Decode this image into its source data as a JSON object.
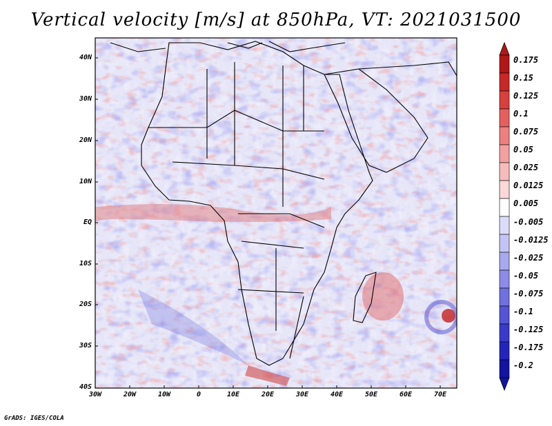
{
  "title": "Vertical velocity [m/s] at 850hPa, VT: 2021031500",
  "credit": "GrADS: IGES/COLA",
  "map": {
    "lat_ticks": [
      "40N",
      "30N",
      "20N",
      "10N",
      "EQ",
      "10S",
      "20S",
      "30S",
      "40S"
    ],
    "lon_ticks": [
      "30W",
      "20W",
      "10W",
      "0",
      "10E",
      "20E",
      "30E",
      "40E",
      "50E",
      "60E",
      "70E"
    ],
    "lat_range": [
      -40,
      45
    ],
    "lon_range": [
      -30,
      75
    ],
    "overlay": "country borders and coastlines"
  },
  "colorbar": {
    "orientation": "vertical",
    "labels": [
      "0.175",
      "0.15",
      "0.125",
      "0.1",
      "0.075",
      "0.05",
      "0.025",
      "0.0125",
      "0.005",
      "-0.005",
      "-0.0125",
      "-0.025",
      "-0.05",
      "-0.075",
      "-0.1",
      "-0.125",
      "-0.175",
      "-0.2"
    ],
    "colors": [
      "#b01818",
      "#c82828",
      "#d84040",
      "#e46060",
      "#ec8080",
      "#f2a0a0",
      "#f6bcbc",
      "#fad8d8",
      "#ffffff",
      "#dcdcfa",
      "#c4c4f4",
      "#a8a8ee",
      "#8c8ce6",
      "#7070de",
      "#5454d4",
      "#3a3ac8",
      "#2424b8",
      "#1414a0"
    ]
  },
  "colors": {
    "positive": "#e06060",
    "negative": "#6a6ae0",
    "border": "#000000"
  }
}
